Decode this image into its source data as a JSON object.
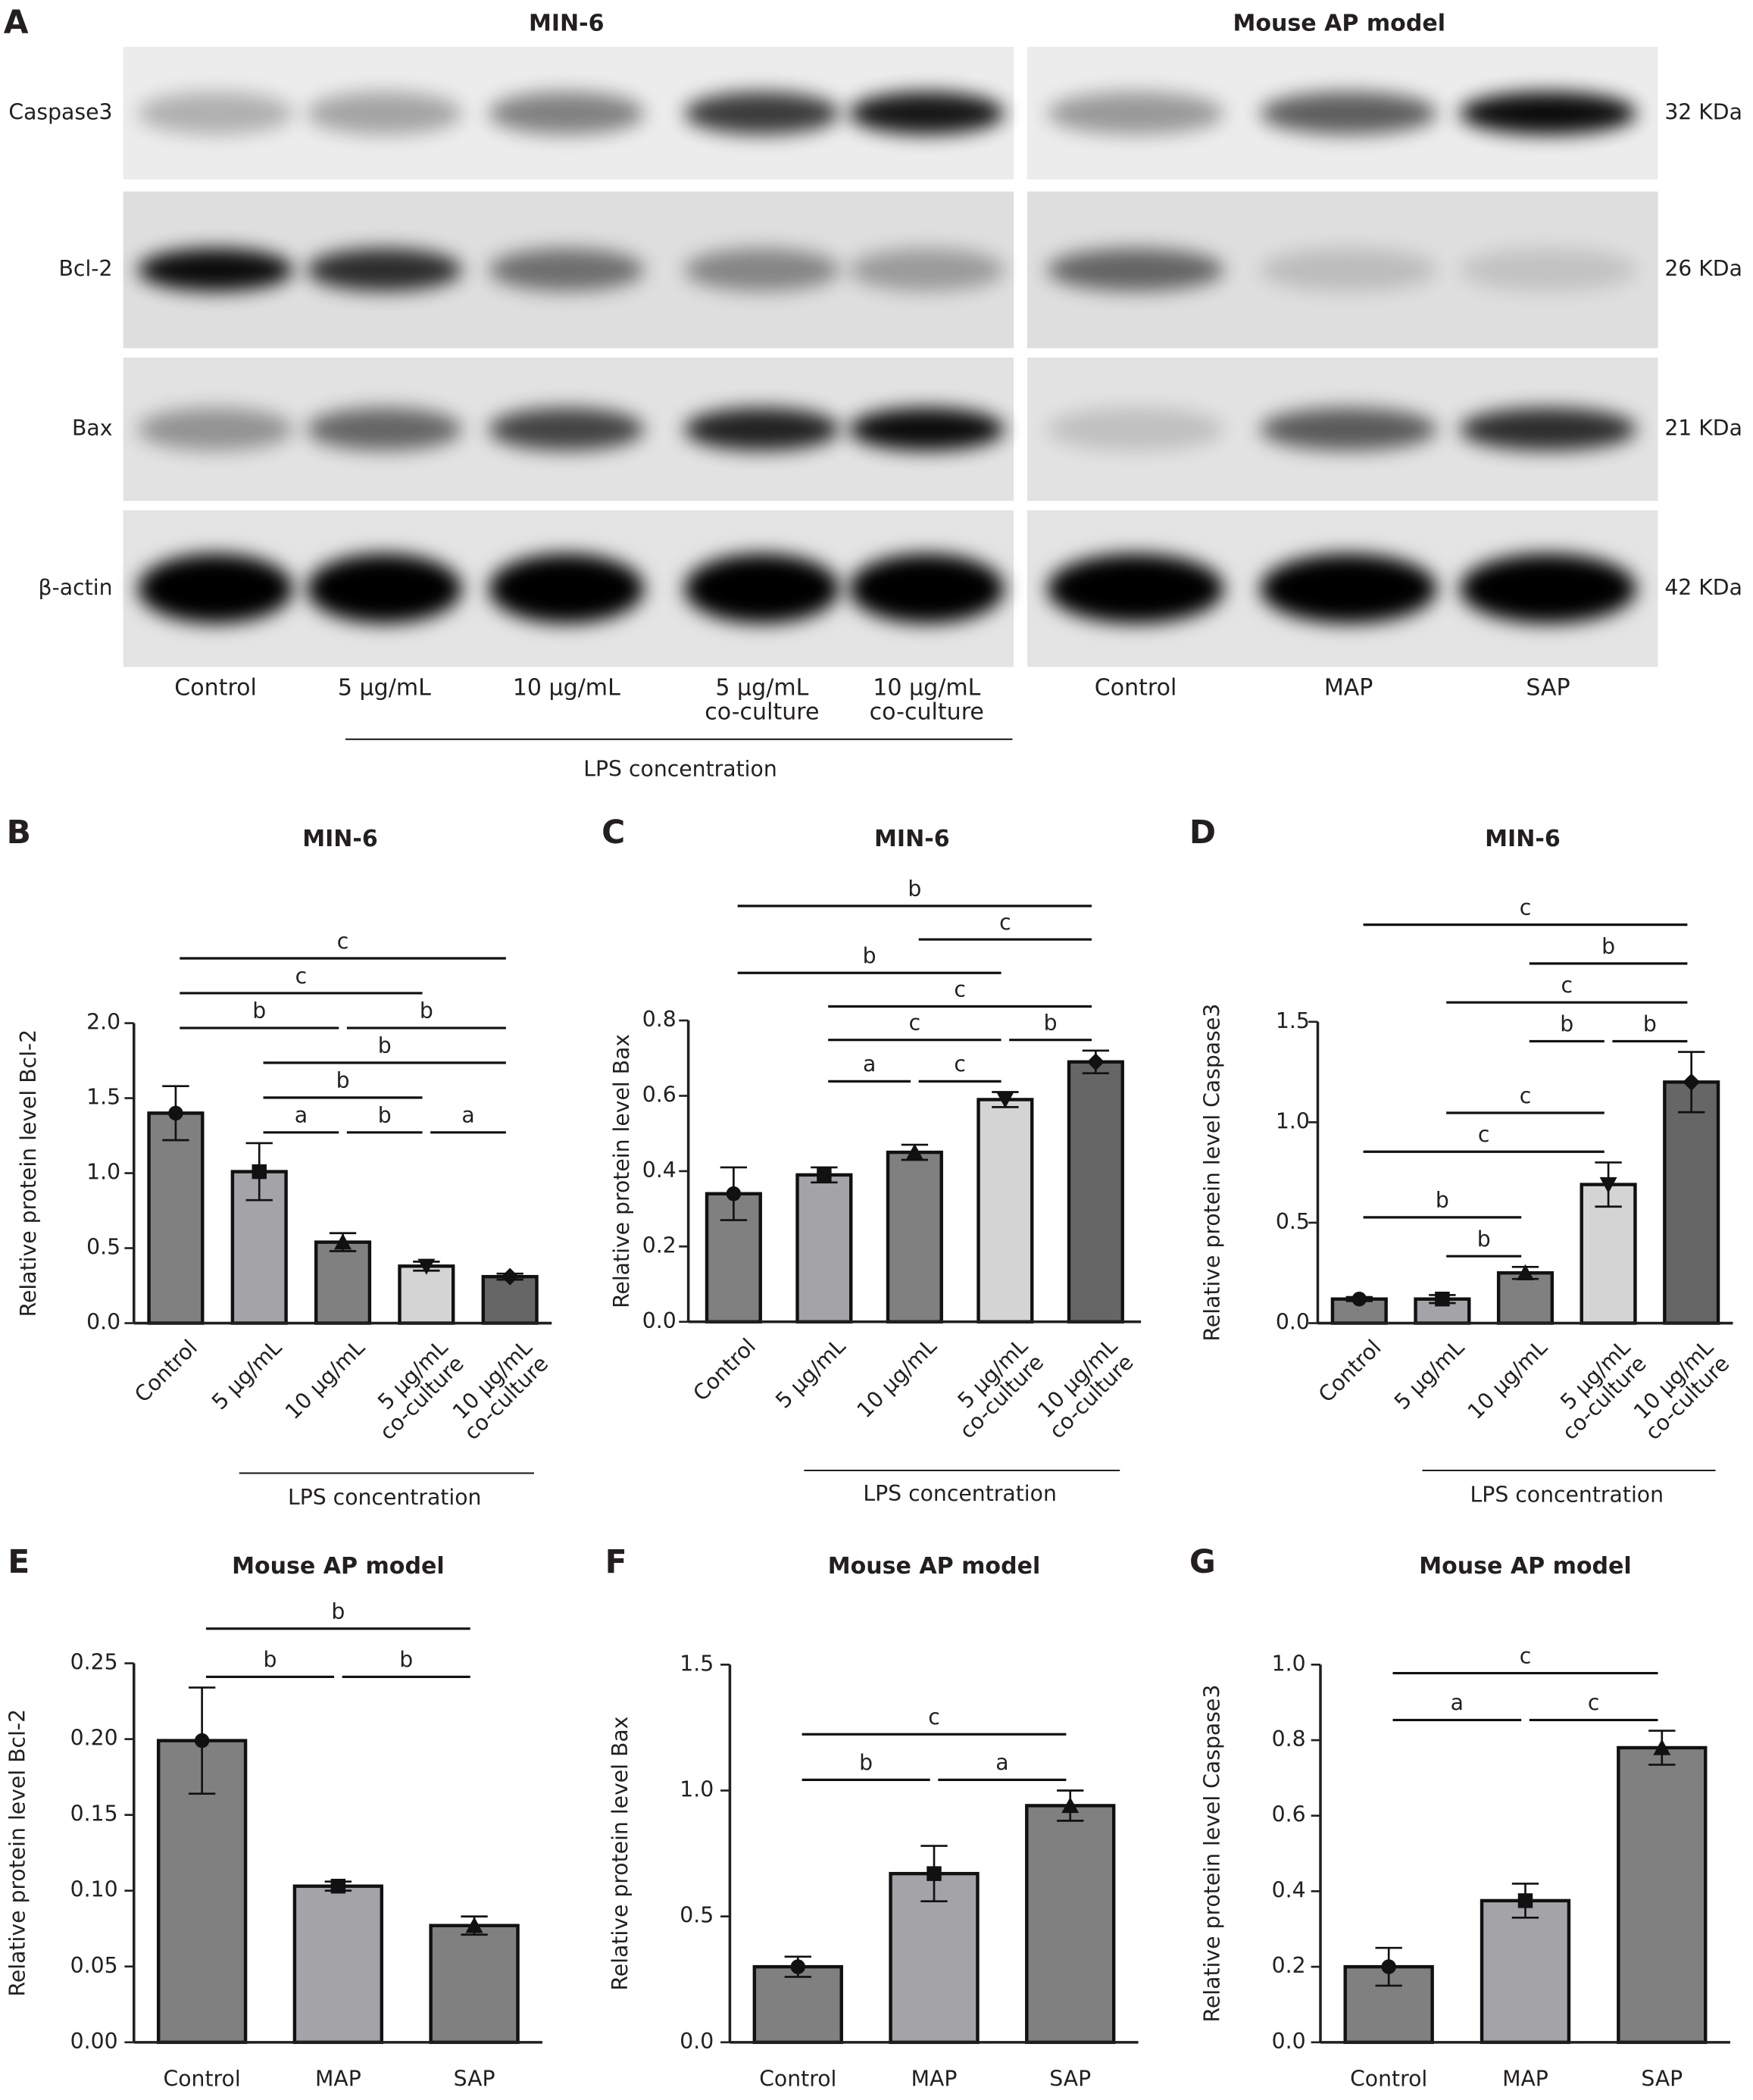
{
  "panel_a": {
    "label": "A",
    "titles": [
      "MIN-6",
      "Mouse AP model"
    ],
    "proteins": [
      "Caspase3",
      "Bcl-2",
      "Bax",
      "β-actin"
    ],
    "sizes": [
      "32 KDa",
      "26 KDa",
      "21 KDa",
      "42 KDa"
    ],
    "lanes_left": [
      "Control",
      "5 μg/mL",
      "10 μg/mL",
      "5 μg/mL co-culture",
      "10 μg/mL co-culture"
    ],
    "lanes_right": [
      "Control",
      "MAP",
      "SAP"
    ],
    "group_label": "LPS concentration"
  },
  "chart_data": [
    {
      "panel": "B",
      "type": "bar",
      "title": "MIN-6",
      "y_label": "Relative protein level Bcl-2",
      "categories": [
        "Control",
        "5 μg/mL",
        "10 μg/mL",
        "5 μg/mL co-culture",
        "10 μg/mL co-culture"
      ],
      "values": [
        1.4,
        1.01,
        0.54,
        0.38,
        0.31
      ],
      "errors": [
        0.18,
        0.19,
        0.06,
        0.03,
        0.02
      ],
      "colors": [
        "#808080",
        "#a3a3a8",
        "#808080",
        "#d4d4d4",
        "#666666"
      ],
      "ylim": [
        0,
        2
      ],
      "yticks": [
        {
          "value": 0,
          "label": "0.0"
        },
        {
          "value": 0.5,
          "label": "0.5"
        },
        {
          "value": 1,
          "label": "1.0"
        },
        {
          "value": 1.5,
          "label": "1.5"
        },
        {
          "value": 2,
          "label": "2.0"
        }
      ],
      "group_label": {
        "text": "LPS concentration",
        "from": 1,
        "to": 4
      },
      "significance": [
        [
          {
            "from": 1,
            "to": 2,
            "label": "a"
          },
          {
            "from": 2,
            "to": 3,
            "label": "b"
          },
          {
            "from": 3,
            "to": 4,
            "label": "a"
          }
        ],
        [
          {
            "from": 1,
            "to": 3,
            "label": "b"
          }
        ],
        [
          {
            "from": 1,
            "to": 4,
            "label": "b"
          }
        ],
        [
          {
            "from": 0,
            "to": 2,
            "label": "b"
          },
          {
            "from": 2,
            "to": 4,
            "label": "b"
          }
        ],
        [
          {
            "from": 0,
            "to": 3,
            "label": "c"
          }
        ],
        [
          {
            "from": 0,
            "to": 4,
            "label": "c"
          }
        ]
      ]
    },
    {
      "panel": "C",
      "type": "bar",
      "title": "MIN-6",
      "y_label": "Relative protein level Bax",
      "categories": [
        "Control",
        "5 μg/mL",
        "10 μg/mL",
        "5 μg/mL co-culture",
        "10 μg/mL co-culture"
      ],
      "values": [
        0.34,
        0.39,
        0.45,
        0.59,
        0.69
      ],
      "errors": [
        0.07,
        0.02,
        0.02,
        0.02,
        0.03
      ],
      "colors": [
        "#808080",
        "#a3a3a8",
        "#808080",
        "#d4d4d4",
        "#666666"
      ],
      "ylim": [
        0,
        0.8
      ],
      "yticks": [
        {
          "value": 0,
          "label": "0.0"
        },
        {
          "value": 0.2,
          "label": "0.2"
        },
        {
          "value": 0.4,
          "label": "0.4"
        },
        {
          "value": 0.6,
          "label": "0.6"
        },
        {
          "value": 0.8,
          "label": "0.8"
        }
      ],
      "group_label": {
        "text": "LPS concentration",
        "from": 1,
        "to": 4
      },
      "significance": [
        [
          {
            "from": 1,
            "to": 2,
            "label": "a"
          },
          {
            "from": 2,
            "to": 3,
            "label": "c"
          }
        ],
        [
          {
            "from": 1,
            "to": 3,
            "label": "c"
          },
          {
            "from": 3,
            "to": 4,
            "label": "b"
          }
        ],
        [
          {
            "from": 1,
            "to": 4,
            "label": "c"
          }
        ],
        [
          {
            "from": 0,
            "to": 3,
            "label": "b"
          }
        ],
        [
          {
            "from": 2,
            "to": 4,
            "label": "c"
          }
        ],
        [
          {
            "from": 0,
            "to": 4,
            "label": "b"
          }
        ]
      ]
    },
    {
      "panel": "D",
      "type": "bar",
      "title": "MIN-6",
      "y_label": "Relative protein level Caspase3",
      "categories": [
        "Control",
        "5 μg/mL",
        "10 μg/mL",
        "5 μg/mL co-culture",
        "10 μg/mL co-culture"
      ],
      "values": [
        0.12,
        0.12,
        0.25,
        0.69,
        1.2
      ],
      "errors": [
        0.01,
        0.02,
        0.03,
        0.11,
        0.15
      ],
      "colors": [
        "#808080",
        "#a3a3a8",
        "#808080",
        "#d4d4d4",
        "#666666"
      ],
      "ylim": [
        0,
        1.5
      ],
      "yticks": [
        {
          "value": 0,
          "label": "0.0"
        },
        {
          "value": 0.5,
          "label": "0.5"
        },
        {
          "value": 1,
          "label": "1.0"
        },
        {
          "value": 1.5,
          "label": "1.5"
        }
      ],
      "group_label": {
        "text": "LPS concentration",
        "from": 1,
        "to": 4
      },
      "significance": [
        [
          {
            "from": 1,
            "to": 2,
            "label": "b"
          }
        ],
        [
          {
            "from": 0,
            "to": 2,
            "label": "b"
          }
        ],
        [
          {
            "from": 0,
            "to": 3,
            "label": "c"
          }
        ],
        [
          {
            "from": 1,
            "to": 3,
            "label": "c"
          }
        ],
        [
          {
            "from": 2,
            "to": 3,
            "label": "b"
          },
          {
            "from": 3,
            "to": 4,
            "label": "b"
          }
        ],
        [
          {
            "from": 1,
            "to": 4,
            "label": "c"
          }
        ],
        [
          {
            "from": 2,
            "to": 4,
            "label": "b"
          }
        ],
        [
          {
            "from": 0,
            "to": 4,
            "label": "c"
          }
        ]
      ]
    },
    {
      "panel": "E",
      "type": "bar",
      "title": "Mouse AP model",
      "y_label": "Relative protein level Bcl-2",
      "categories": [
        "Control",
        "MAP",
        "SAP"
      ],
      "values": [
        0.199,
        0.103,
        0.077
      ],
      "errors": [
        0.035,
        0.003,
        0.006
      ],
      "colors": [
        "#808080",
        "#a3a3a8",
        "#808080"
      ],
      "ylim": [
        0,
        0.25
      ],
      "yticks": [
        {
          "value": 0,
          "label": "0.00"
        },
        {
          "value": 0.05,
          "label": "0.05"
        },
        {
          "value": 0.1,
          "label": "0.10"
        },
        {
          "value": 0.15,
          "label": "0.15"
        },
        {
          "value": 0.2,
          "label": "0.20"
        },
        {
          "value": 0.25,
          "label": "0.25"
        }
      ],
      "significance": [
        [
          {
            "from": 0,
            "to": 1,
            "label": "b"
          },
          {
            "from": 1,
            "to": 2,
            "label": "b"
          }
        ],
        [
          {
            "from": 0,
            "to": 2,
            "label": "b"
          }
        ]
      ]
    },
    {
      "panel": "F",
      "type": "bar",
      "title": "Mouse AP model",
      "y_label": "Relative protein level Bax",
      "categories": [
        "Control",
        "MAP",
        "SAP"
      ],
      "values": [
        0.3,
        0.67,
        0.94
      ],
      "errors": [
        0.04,
        0.11,
        0.06
      ],
      "colors": [
        "#808080",
        "#a3a3a8",
        "#808080"
      ],
      "ylim": [
        0,
        1.5
      ],
      "yticks": [
        {
          "value": 0,
          "label": "0.0"
        },
        {
          "value": 0.5,
          "label": "0.5"
        },
        {
          "value": 1,
          "label": "1.0"
        },
        {
          "value": 1.5,
          "label": "1.5"
        }
      ],
      "significance": [
        [
          {
            "from": 0,
            "to": 1,
            "label": "b"
          },
          {
            "from": 1,
            "to": 2,
            "label": "a"
          }
        ],
        [
          {
            "from": 0,
            "to": 2,
            "label": "c"
          }
        ]
      ]
    },
    {
      "panel": "G",
      "type": "bar",
      "title": "Mouse AP model",
      "y_label": "Relative protein level Caspase3",
      "categories": [
        "Control",
        "MAP",
        "SAP"
      ],
      "values": [
        0.2,
        0.375,
        0.78
      ],
      "errors": [
        0.05,
        0.045,
        0.045
      ],
      "colors": [
        "#808080",
        "#a3a3a8",
        "#808080"
      ],
      "ylim": [
        0,
        1
      ],
      "yticks": [
        {
          "value": 0,
          "label": "0.0"
        },
        {
          "value": 0.2,
          "label": "0.2"
        },
        {
          "value": 0.4,
          "label": "0.4"
        },
        {
          "value": 0.6,
          "label": "0.6"
        },
        {
          "value": 0.8,
          "label": "0.8"
        },
        {
          "value": 1,
          "label": "1.0"
        }
      ],
      "significance": [
        [
          {
            "from": 0,
            "to": 1,
            "label": "a"
          },
          {
            "from": 1,
            "to": 2,
            "label": "c"
          }
        ],
        [
          {
            "from": 0,
            "to": 2,
            "label": "c"
          }
        ]
      ]
    }
  ]
}
